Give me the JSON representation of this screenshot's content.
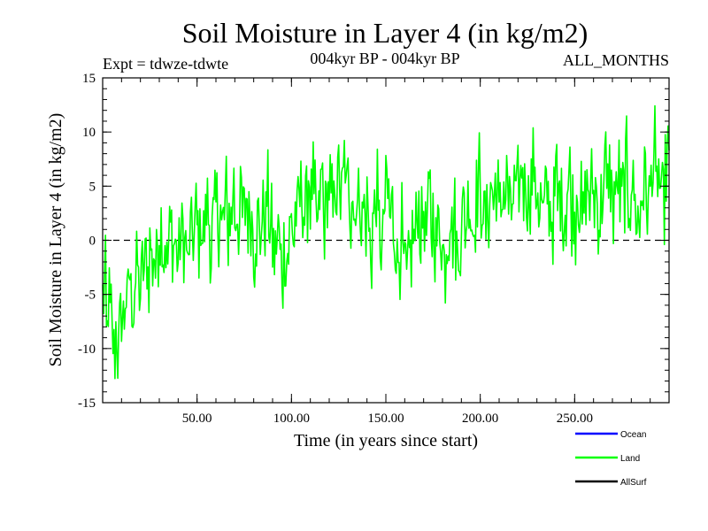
{
  "chart_data": {
    "type": "line",
    "title": "Soil Moisture in Layer 4 (in kg/m2)",
    "subtitle_left": "Expt = tdwze-tdwte",
    "subtitle_center": "004kyr BP - 004kyr BP",
    "subtitle_right": "ALL_MONTHS",
    "xlabel": "Time (in years since start)",
    "ylabel": "Soil Moisture in Layer 4 (in kg/m2)",
    "xlim": [
      0,
      300
    ],
    "ylim": [
      -15,
      15
    ],
    "x_ticks": [
      {
        "value": 50,
        "label": "50.00"
      },
      {
        "value": 100,
        "label": "100.00"
      },
      {
        "value": 150,
        "label": "150.00"
      },
      {
        "value": 200,
        "label": "200.00"
      },
      {
        "value": 250,
        "label": "250.00"
      }
    ],
    "y_ticks": [
      {
        "value": 15,
        "label": "15"
      },
      {
        "value": 10,
        "label": "10"
      },
      {
        "value": 5,
        "label": "5"
      },
      {
        "value": 0,
        "label": "0"
      },
      {
        "value": -5,
        "label": "-5"
      },
      {
        "value": -10,
        "label": "-10"
      },
      {
        "value": -15,
        "label": "-15"
      }
    ],
    "reference_line": {
      "y": 0,
      "style": "dashed"
    },
    "legend_placement": "bottom-right",
    "legend": [
      {
        "name": "Ocean",
        "color": "#0000ff"
      },
      {
        "name": "Land",
        "color": "#00ff00"
      },
      {
        "name": "AllSurf",
        "color": "#000000"
      }
    ],
    "series": [
      {
        "name": "Land",
        "color": "#00ff00",
        "x": [
          0,
          5,
          10,
          15,
          20,
          25,
          30,
          35,
          40,
          45,
          50,
          55,
          60,
          65,
          70,
          75,
          80,
          85,
          90,
          95,
          100,
          105,
          110,
          115,
          120,
          125,
          130,
          135,
          140,
          145,
          150,
          155,
          160,
          165,
          170,
          175,
          180,
          185,
          190,
          195,
          200,
          205,
          210,
          215,
          220,
          225,
          230,
          235,
          240,
          245,
          250,
          255,
          260,
          265,
          270,
          275,
          280,
          285,
          290,
          295,
          300
        ],
        "y": [
          -5,
          -8,
          -10,
          -7,
          -5,
          -3,
          -2,
          -1,
          -2,
          -1,
          0,
          1,
          2,
          2,
          2,
          2,
          3,
          1,
          2,
          0,
          -1,
          1,
          3,
          4,
          2,
          1,
          2,
          3,
          4,
          3,
          4,
          3,
          2,
          2,
          1,
          0,
          -1,
          1,
          1,
          2,
          1,
          0,
          1,
          2,
          3,
          2,
          3,
          4,
          3,
          3,
          3,
          2,
          3,
          4,
          3,
          2,
          3,
          3,
          4,
          4,
          5
        ],
        "dense_y": [
          -5,
          -4,
          -9,
          -6,
          -7,
          -9,
          -10,
          -8,
          -11,
          -8,
          -7,
          -7,
          -5,
          -6,
          -3,
          -5,
          -6,
          -4,
          -2,
          -4,
          -5,
          -2,
          -3,
          -1,
          -3,
          0,
          -2,
          -1,
          -3,
          0,
          1,
          2,
          -1,
          0,
          -2,
          0,
          1,
          -1,
          0,
          -1,
          -2,
          0,
          1,
          -1,
          0,
          -3,
          0,
          1,
          0,
          2,
          1,
          -1,
          2,
          0,
          1,
          3,
          2,
          -1,
          1,
          2,
          3,
          2,
          3,
          1,
          2,
          4,
          1,
          3,
          2,
          5,
          2,
          3,
          1,
          4,
          2,
          3,
          4,
          1,
          3,
          2,
          -1,
          1,
          2,
          0,
          2,
          3,
          1,
          4,
          2,
          1,
          -1,
          -2,
          0,
          1,
          -2,
          -3,
          0,
          -2,
          -1,
          1,
          2,
          0,
          3,
          2,
          4,
          5,
          3,
          2,
          4,
          6,
          3,
          5,
          3,
          2,
          1,
          4,
          6,
          2,
          3,
          4,
          5,
          3,
          2,
          6,
          4,
          7,
          3,
          5,
          8,
          4,
          6,
          3,
          5,
          2,
          4,
          3,
          5,
          1,
          3,
          2,
          4,
          0,
          -1,
          2,
          3,
          4,
          1,
          0,
          -1,
          3,
          5,
          4,
          2,
          3,
          1,
          0,
          -2,
          -1,
          1,
          -2,
          -3,
          -4,
          -2,
          -1,
          1,
          0,
          2,
          3,
          1,
          2,
          3,
          1,
          2,
          4,
          1,
          3,
          -1,
          0,
          2,
          1,
          -1,
          -2,
          0,
          1,
          3,
          1,
          2,
          -1,
          -2,
          0,
          2,
          3,
          1,
          3,
          4,
          2,
          1,
          3,
          5,
          6,
          3,
          4,
          2,
          1,
          3,
          4,
          5,
          3,
          6,
          4,
          2,
          3,
          5,
          4,
          6,
          3,
          2,
          4,
          5,
          3,
          6,
          5,
          7,
          4,
          6,
          3,
          5,
          6,
          8,
          4,
          5,
          3,
          4,
          2,
          3,
          5,
          4,
          3,
          2,
          4,
          6,
          3,
          5,
          4,
          2,
          3,
          5,
          6,
          3,
          4,
          2,
          5,
          4,
          3,
          1,
          3,
          4,
          5,
          3,
          6,
          4,
          5,
          3,
          2,
          4,
          5,
          7,
          4,
          6,
          5,
          3,
          5,
          4,
          6,
          3,
          4,
          5,
          7,
          3,
          4,
          6,
          5,
          3,
          2,
          1,
          4,
          5,
          6,
          4,
          3,
          5,
          7,
          8,
          4,
          6,
          5,
          3,
          4,
          7,
          8,
          6
        ]
      }
    ]
  }
}
